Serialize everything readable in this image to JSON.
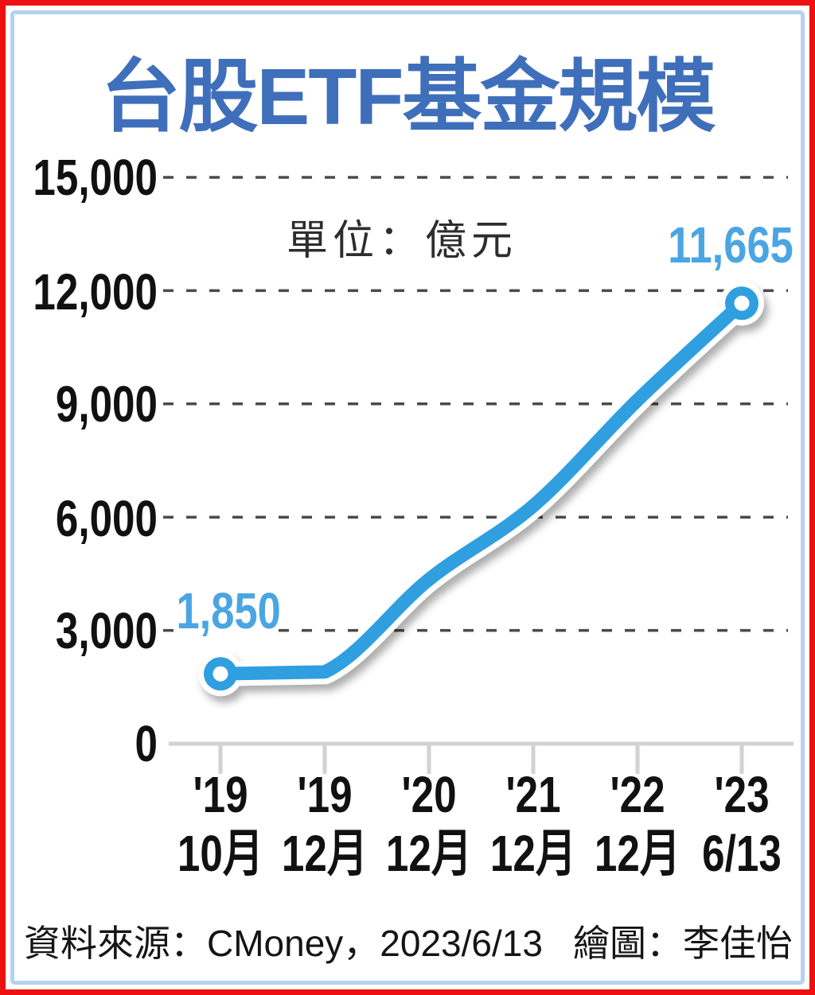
{
  "title": "台股ETF基金規模",
  "unit_label": "單位：億元",
  "footer": {
    "source": "資料來源：CMoney，2023/6/13",
    "credit": "繪圖：李佳怡"
  },
  "frame": {
    "outer_border_color": "#ee1111",
    "inner_border_color": "#b5d2ee"
  },
  "chart_data": {
    "type": "line",
    "title": "台股ETF基金規模",
    "unit_note": "單位：億元",
    "categories": [
      "'19 10月",
      "'19 12月",
      "'20 12月",
      "'21 12月",
      "'22 12月",
      "'23 6/13"
    ],
    "x_labels": [
      {
        "year": "'19",
        "period": "10月"
      },
      {
        "year": "'19",
        "period": "12月"
      },
      {
        "year": "'20",
        "period": "12月"
      },
      {
        "year": "'21",
        "period": "12月"
      },
      {
        "year": "'22",
        "period": "12月"
      },
      {
        "year": "'23",
        "period": "6/13"
      }
    ],
    "values": [
      1850,
      1900,
      4350,
      6300,
      9100,
      11665
    ],
    "point_labels": {
      "first": "1,850",
      "last": "11,665"
    },
    "ylim": [
      0,
      15000
    ],
    "yticks": [
      15000,
      12000,
      9000,
      6000,
      3000,
      0
    ],
    "ytick_labels": [
      "15,000",
      "12,000",
      "9,000",
      "6,000",
      "3,000",
      "0"
    ],
    "grid": "horizontal-dashed",
    "legend": "none",
    "line_color": "#2f9fe0",
    "grid_color": "#4b4b4b",
    "axis_color": "#d2d2d2",
    "point_label_color": "#4ba5e2",
    "title_color": "#3f6fba"
  }
}
